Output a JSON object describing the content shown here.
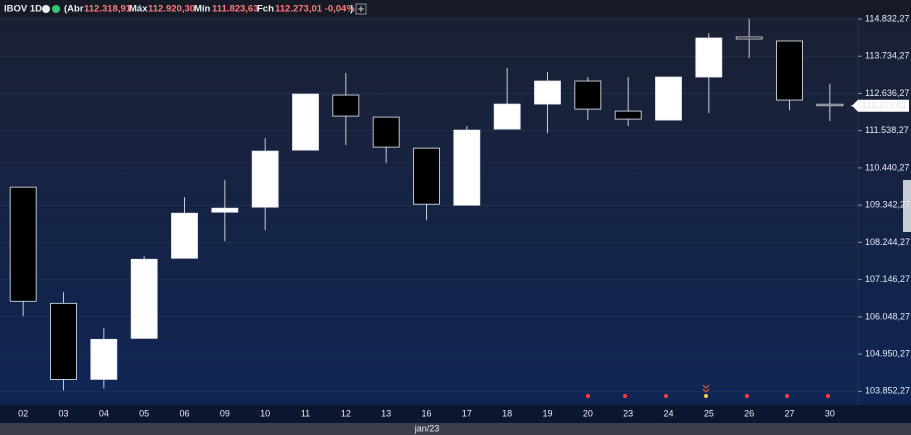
{
  "header": {
    "symbol": "IBOV 1D",
    "open_label": "(Abr",
    "open": "112.318,91",
    "high_label": "Máx",
    "high": "112.920,30",
    "low_label": "Mín",
    "low": "111.823,63",
    "close_label": "Fch",
    "close": "112.273,01 -0,04%",
    "close_paren": ")"
  },
  "chart_data": {
    "type": "candlestick",
    "categories": [
      "02",
      "03",
      "04",
      "05",
      "06",
      "09",
      "10",
      "11",
      "12",
      "13",
      "16",
      "17",
      "18",
      "19",
      "20",
      "23",
      "24",
      "25",
      "26",
      "27",
      "30"
    ],
    "open": [
      109873,
      106448,
      104205,
      105415,
      107777,
      109135,
      109283,
      110965,
      112589,
      111939,
      111024,
      109341,
      111585,
      112323,
      113002,
      112116,
      111851,
      113120,
      114301,
      114183,
      112318.91
    ],
    "high": [
      109873,
      106773,
      105710,
      107836,
      109578,
      110080,
      111319,
      112618,
      113238,
      111939,
      111024,
      111674,
      113386,
      113268,
      113120,
      113120,
      113120,
      114419,
      114832,
      114183,
      112920.3
    ],
    "low": [
      106065,
      103880,
      103939,
      105415,
      107777,
      108279,
      108604,
      110965,
      111113,
      110581,
      108899,
      109341,
      111585,
      111467,
      111851,
      111674,
      111851,
      112057,
      113681,
      112146,
      111823.63
    ],
    "close": [
      106508,
      104205,
      105386,
      107747,
      109105,
      109253,
      110936,
      112618,
      111969,
      111054,
      109371,
      111555,
      112323,
      113002,
      112175,
      111880,
      113120,
      114271,
      114242,
      112441,
      112273.01
    ],
    "up_color": "#ffffff",
    "down_color": "#000000",
    "x_group_label": "jan/23",
    "last_price": {
      "value": 112273.01,
      "label": "112.273,01"
    },
    "ylim": [
      103450,
      114890
    ],
    "yticks": [
      {
        "value": 103852.27,
        "label": "103.852,27"
      },
      {
        "value": 104950.27,
        "label": "104.950,27"
      },
      {
        "value": 106048.27,
        "label": "106.048,27"
      },
      {
        "value": 107146.27,
        "label": "107.146,27"
      },
      {
        "value": 108244.27,
        "label": "108.244,27"
      },
      {
        "value": 109342.27,
        "label": "109.342,27"
      },
      {
        "value": 110440.27,
        "label": "110.440,27"
      },
      {
        "value": 111538.27,
        "label": "111.538,27"
      },
      {
        "value": 112636.27,
        "label": "112.636,27"
      },
      {
        "value": 113734.27,
        "label": "113.734,27"
      },
      {
        "value": 114832.27,
        "label": "114.832,27"
      }
    ],
    "grid": true
  }
}
